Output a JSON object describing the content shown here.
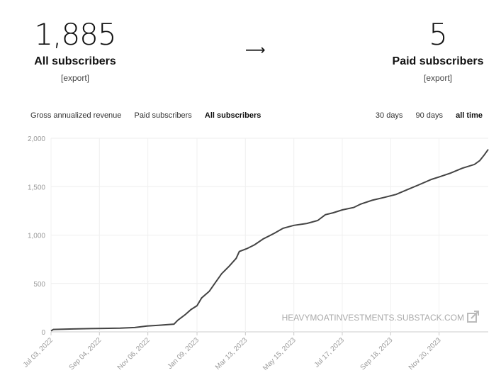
{
  "stats": {
    "all": {
      "value": "1,885",
      "label": "All subscribers",
      "export": "[export]"
    },
    "arrow": "⟶",
    "paid": {
      "value": "5",
      "label": "Paid subscribers",
      "export": "[export]"
    }
  },
  "metric_tabs": [
    {
      "label": "Gross annualized revenue",
      "active": false
    },
    {
      "label": "Paid subscribers",
      "active": false
    },
    {
      "label": "All subscribers",
      "active": true
    }
  ],
  "range_tabs": [
    {
      "label": "30 days",
      "active": false
    },
    {
      "label": "90 days",
      "active": false
    },
    {
      "label": "all time",
      "active": true
    }
  ],
  "watermark": "HEAVYMOATINVESTMENTS.SUBSTACK.COM",
  "chart_data": {
    "type": "line",
    "ylim": [
      0,
      2000
    ],
    "yticks": [
      "0",
      "500",
      "1,000",
      "1,500",
      "2,000"
    ],
    "ytick_values": [
      0,
      500,
      1000,
      1500,
      2000
    ],
    "xtick_labels": [
      "Jul 03, 2022",
      "Sep 04, 2022",
      "Nov 06, 2022",
      "Jan 09, 2023",
      "Mar 13, 2023",
      "May 15, 2023",
      "Jul 17, 2023",
      "Sep 18, 2023",
      "Nov 20, 2023"
    ],
    "xtick_values": [
      "2022-07-03",
      "2022-09-04",
      "2022-11-06",
      "2023-01-09",
      "2023-03-13",
      "2023-05-15",
      "2023-07-17",
      "2023-09-18",
      "2023-11-20"
    ],
    "xlim": [
      "2022-07-03",
      "2024-01-23"
    ],
    "grid": true,
    "series": [
      {
        "color": "#444444",
        "points": [
          [
            "2022-07-03",
            10
          ],
          [
            "2022-07-06",
            25
          ],
          [
            "2022-08-01",
            30
          ],
          [
            "2022-09-01",
            35
          ],
          [
            "2022-10-01",
            38
          ],
          [
            "2022-10-20",
            45
          ],
          [
            "2022-11-05",
            60
          ],
          [
            "2022-11-20",
            68
          ],
          [
            "2022-12-10",
            80
          ],
          [
            "2022-12-15",
            120
          ],
          [
            "2022-12-25",
            180
          ],
          [
            "2023-01-01",
            230
          ],
          [
            "2023-01-09",
            270
          ],
          [
            "2023-01-15",
            350
          ],
          [
            "2023-01-25",
            420
          ],
          [
            "2023-02-01",
            500
          ],
          [
            "2023-02-10",
            600
          ],
          [
            "2023-02-20",
            680
          ],
          [
            "2023-03-01",
            760
          ],
          [
            "2023-03-05",
            830
          ],
          [
            "2023-03-15",
            860
          ],
          [
            "2023-03-25",
            900
          ],
          [
            "2023-04-05",
            960
          ],
          [
            "2023-04-20",
            1020
          ],
          [
            "2023-05-01",
            1070
          ],
          [
            "2023-05-15",
            1100
          ],
          [
            "2023-06-01",
            1120
          ],
          [
            "2023-06-15",
            1150
          ],
          [
            "2023-06-25",
            1210
          ],
          [
            "2023-07-05",
            1230
          ],
          [
            "2023-07-17",
            1260
          ],
          [
            "2023-08-01",
            1285
          ],
          [
            "2023-08-10",
            1320
          ],
          [
            "2023-08-25",
            1360
          ],
          [
            "2023-09-10",
            1390
          ],
          [
            "2023-09-25",
            1420
          ],
          [
            "2023-10-10",
            1470
          ],
          [
            "2023-10-25",
            1520
          ],
          [
            "2023-11-10",
            1575
          ],
          [
            "2023-11-20",
            1600
          ],
          [
            "2023-12-05",
            1640
          ],
          [
            "2023-12-20",
            1690
          ],
          [
            "2024-01-05",
            1730
          ],
          [
            "2024-01-12",
            1770
          ],
          [
            "2024-01-18",
            1830
          ],
          [
            "2024-01-23",
            1885
          ]
        ]
      }
    ]
  }
}
